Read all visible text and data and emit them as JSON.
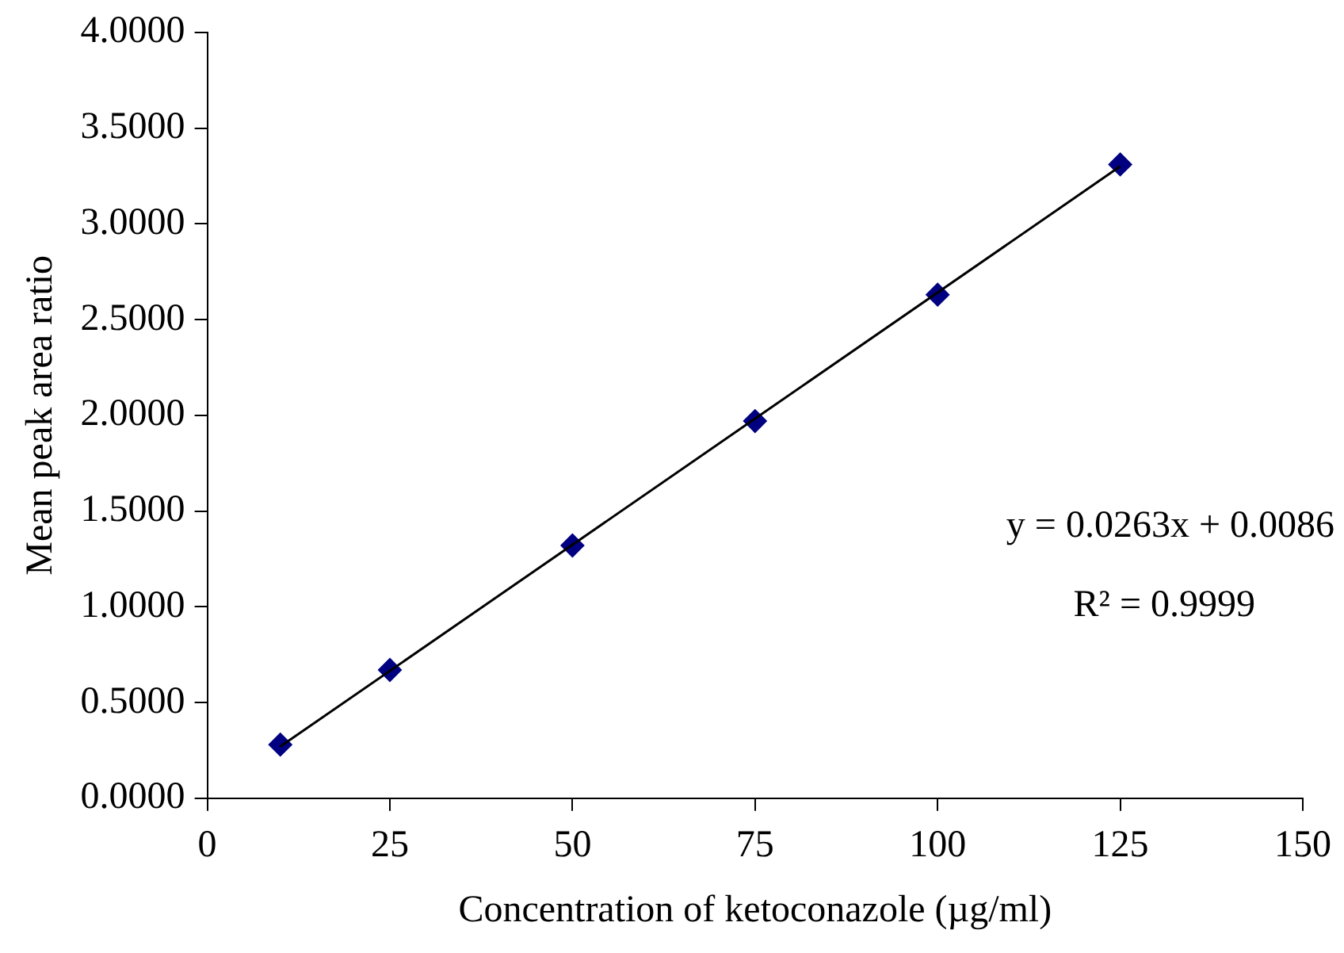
{
  "chart_data": {
    "type": "scatter",
    "xlabel": "Concentration of ketoconazole (µg/ml)",
    "ylabel": "Mean peak area ratio",
    "x": [
      10,
      25,
      50,
      75,
      100,
      125
    ],
    "series": [
      {
        "type": "scatter",
        "color": "#000080",
        "marker": "diamond",
        "values": [
          0.28,
          0.67,
          1.32,
          1.97,
          2.63,
          3.31
        ]
      },
      {
        "type": "line",
        "color": "#000000",
        "marker": "none",
        "x": [
          10,
          125
        ],
        "values": [
          0.27,
          3.3
        ]
      }
    ],
    "xlim": [
      0,
      150
    ],
    "xticks": [
      0,
      25,
      50,
      75,
      100,
      125,
      150
    ],
    "ylim": [
      0,
      4
    ],
    "yticks": [
      {
        "value": 0,
        "label": "0.0000"
      },
      {
        "value": 0.5,
        "label": "0.5000"
      },
      {
        "value": 1,
        "label": "1.0000"
      },
      {
        "value": 1.5,
        "label": "1.5000"
      },
      {
        "value": 2,
        "label": "2.0000"
      },
      {
        "value": 2.5,
        "label": "2.5000"
      },
      {
        "value": 3,
        "label": "3.0000"
      },
      {
        "value": 3.5,
        "label": "3.5000"
      },
      {
        "value": 4,
        "label": "4.0000"
      }
    ],
    "grid": false,
    "legend": false,
    "annotations": [
      "y = 0.0263x + 0.0086",
      "R² = 0.9999"
    ]
  }
}
